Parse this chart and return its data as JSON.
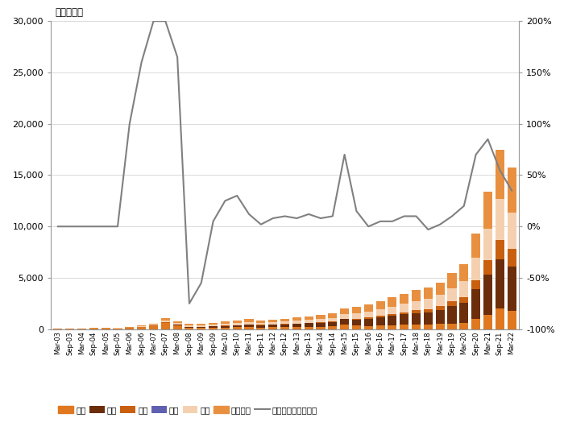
{
  "title_left": "（十亿元）",
  "dates": [
    "Mar-03",
    "Sep-03",
    "Mar-04",
    "Sep-04",
    "Mar-05",
    "Sep-05",
    "Mar-06",
    "Sep-06",
    "Mar-07",
    "Sep-07",
    "Mar-08",
    "Sep-08",
    "Mar-09",
    "Sep-09",
    "Mar-10",
    "Sep-10",
    "Mar-11",
    "Sep-11",
    "Mar-12",
    "Sep-12",
    "Mar-13",
    "Sep-13",
    "Mar-14",
    "Sep-14",
    "Mar-15",
    "Sep-15",
    "Mar-16",
    "Sep-16",
    "Mar-17",
    "Sep-17",
    "Mar-18",
    "Sep-18",
    "Mar-19",
    "Sep-19",
    "Mar-20",
    "Sep-20",
    "Mar-21",
    "Sep-21",
    "Mar-22"
  ],
  "stocks": [
    30,
    40,
    45,
    50,
    55,
    65,
    100,
    200,
    300,
    600,
    350,
    130,
    110,
    140,
    160,
    180,
    190,
    170,
    175,
    190,
    210,
    230,
    250,
    280,
    450,
    350,
    320,
    360,
    390,
    430,
    480,
    450,
    490,
    560,
    620,
    1000,
    1400,
    2000,
    1800
  ],
  "bonds": [
    3,
    3,
    4,
    4,
    4,
    5,
    8,
    15,
    25,
    40,
    60,
    80,
    100,
    120,
    160,
    200,
    240,
    220,
    240,
    280,
    310,
    340,
    380,
    430,
    520,
    600,
    700,
    800,
    900,
    1000,
    1100,
    1200,
    1400,
    1700,
    1950,
    2900,
    3900,
    4800,
    4300
  ],
  "funds": [
    1,
    1,
    2,
    2,
    2,
    3,
    5,
    10,
    15,
    25,
    20,
    15,
    13,
    15,
    18,
    22,
    26,
    22,
    25,
    28,
    32,
    36,
    40,
    45,
    60,
    80,
    100,
    130,
    170,
    210,
    260,
    310,
    360,
    450,
    550,
    900,
    1400,
    1900,
    1700
  ],
  "warrants": [
    0,
    0,
    0,
    0,
    0,
    0,
    0,
    0,
    4,
    8,
    3,
    1,
    0,
    0,
    0,
    0,
    0,
    0,
    0,
    0,
    0,
    0,
    0,
    0,
    0,
    0,
    0,
    0,
    0,
    0,
    0,
    0,
    0,
    0,
    0,
    0,
    0,
    0,
    0
  ],
  "cash": [
    15,
    18,
    22,
    26,
    30,
    38,
    48,
    65,
    80,
    160,
    160,
    140,
    125,
    155,
    195,
    220,
    240,
    220,
    235,
    250,
    275,
    300,
    320,
    340,
    410,
    490,
    575,
    660,
    745,
    840,
    920,
    1010,
    1100,
    1280,
    1540,
    2150,
    3050,
    3950,
    3520
  ],
  "others": [
    8,
    12,
    15,
    18,
    22,
    30,
    46,
    80,
    120,
    240,
    200,
    160,
    140,
    160,
    200,
    240,
    280,
    240,
    255,
    280,
    320,
    360,
    400,
    440,
    560,
    640,
    720,
    800,
    880,
    960,
    1040,
    1120,
    1200,
    1440,
    1680,
    2400,
    3600,
    4800,
    4400
  ],
  "yoy": [
    0,
    0,
    0,
    0,
    0,
    0,
    100,
    160,
    200,
    200,
    165,
    -75,
    -55,
    5,
    25,
    30,
    12,
    2,
    8,
    10,
    8,
    12,
    8,
    10,
    70,
    15,
    0,
    5,
    5,
    10,
    10,
    -3,
    2,
    10,
    20,
    70,
    85,
    55,
    35
  ],
  "ylim_left": [
    0,
    30000
  ],
  "ylim_right": [
    -100,
    200
  ],
  "yticks_left": [
    0,
    5000,
    10000,
    15000,
    20000,
    25000,
    30000
  ],
  "yticks_right": [
    -100,
    -50,
    0,
    50,
    100,
    150,
    200
  ],
  "colors": {
    "stocks": "#E07820",
    "bonds": "#6B2D0A",
    "funds": "#C86010",
    "warrants": "#6060B0",
    "cash": "#F5D0B0",
    "others": "#E89040",
    "line": "#808080"
  },
  "legend_items": [
    "股票",
    "债券",
    "基金",
    "权证",
    "现金",
    "其他资产",
    "规模同比增速（右）"
  ]
}
